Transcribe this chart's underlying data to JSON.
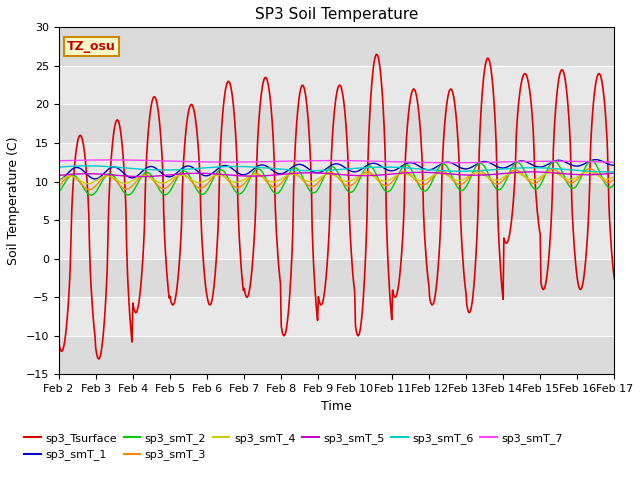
{
  "title": "SP3 Soil Temperature",
  "xlabel": "Time",
  "ylabel": "Soil Temperature (C)",
  "ylim": [
    -15,
    30
  ],
  "annotation_text": "TZ_osu",
  "annotation_bg": "#ffffcc",
  "annotation_border": "#cc8800",
  "fig_facecolor": "#ffffff",
  "plot_facecolor": "#e8e8e8",
  "series": [
    {
      "label": "sp3_Tsurface",
      "color": "#dd0000"
    },
    {
      "label": "sp3_smT_1",
      "color": "#0000cc"
    },
    {
      "label": "sp3_smT_2",
      "color": "#00cc00"
    },
    {
      "label": "sp3_smT_3",
      "color": "#ff8800"
    },
    {
      "label": "sp3_smT_4",
      "color": "#cccc00"
    },
    {
      "label": "sp3_smT_5",
      "color": "#cc00cc"
    },
    {
      "label": "sp3_smT_6",
      "color": "#00cccc"
    },
    {
      "label": "sp3_smT_7",
      "color": "#ff44ff"
    }
  ],
  "xtick_labels": [
    "Feb 2",
    "Feb 3",
    "Feb 4",
    "Feb 5",
    "Feb 6",
    "Feb 7",
    "Feb 8",
    "Feb 9",
    "Feb 10",
    "Feb 11",
    "Feb 12",
    "Feb 13",
    "Feb 14",
    "Feb 15",
    "Feb 16",
    "Feb 17"
  ],
  "yticks": [
    -15,
    -10,
    -5,
    0,
    5,
    10,
    15,
    20,
    25,
    30
  ],
  "grid_color": "#ffffff",
  "title_fontsize": 11,
  "tick_fontsize": 8,
  "ylabel_fontsize": 9,
  "xlabel_fontsize": 9
}
